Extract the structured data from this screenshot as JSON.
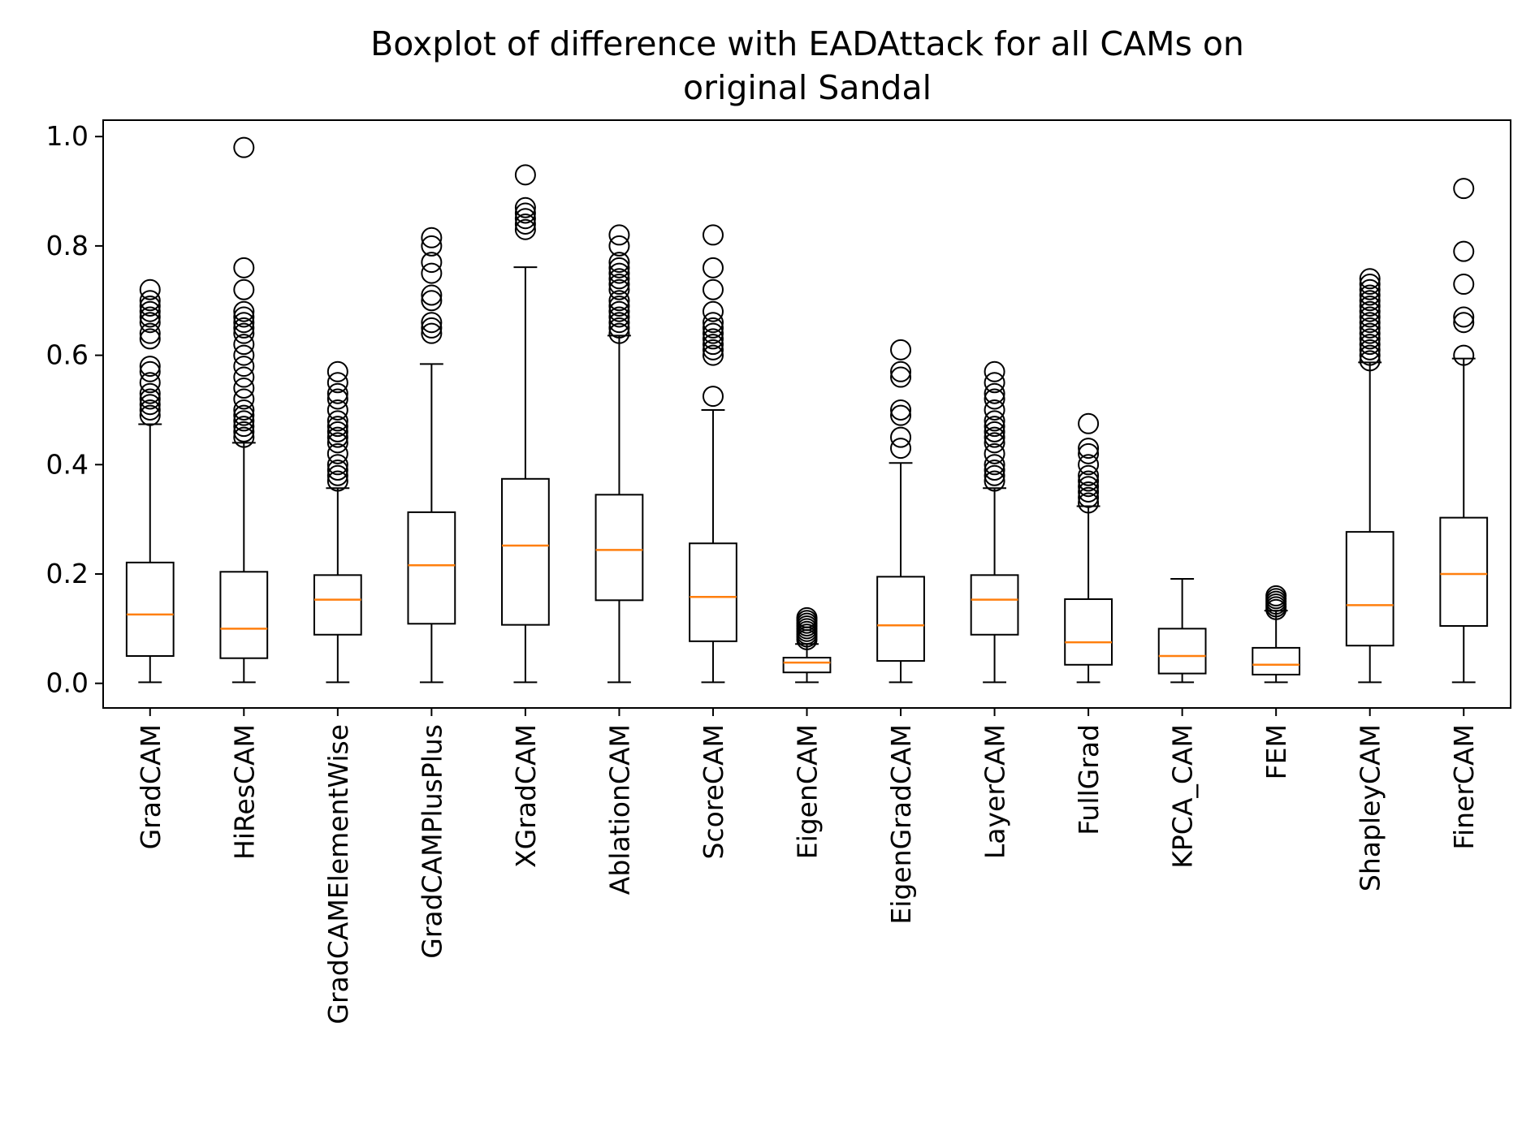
{
  "chart_data": {
    "type": "boxplot",
    "title_lines": [
      "Boxplot of difference with EADAttack for all CAMs on",
      "original Sandal"
    ],
    "xlabel": "",
    "ylabel": "",
    "ylim": [
      -0.045,
      1.03
    ],
    "yticks": [
      0.0,
      0.2,
      0.4,
      0.6,
      0.8,
      1.0
    ],
    "ytick_labels": [
      "0.0",
      "0.2",
      "0.4",
      "0.6",
      "0.8",
      "1.0"
    ],
    "grid": false,
    "colors": {
      "box": "#000000",
      "median": "#ff7f0e"
    },
    "categories": [
      "GradCAM",
      "HiResCAM",
      "GradCAMElementWise",
      "GradCAMPlusPlus",
      "XGradCAM",
      "AblationCAM",
      "ScoreCAM",
      "EigenCAM",
      "EigenGradCAM",
      "LayerCAM",
      "FullGrad",
      "KPCA_CAM",
      "FEM",
      "ShapleyCAM",
      "FinerCAM"
    ],
    "boxes": [
      {
        "whislo": 0.002,
        "q1": 0.05,
        "med": 0.126,
        "q3": 0.221,
        "whishi": 0.474,
        "fliers": [
          0.49,
          0.5,
          0.51,
          0.52,
          0.53,
          0.55,
          0.57,
          0.58,
          0.63,
          0.64,
          0.66,
          0.67,
          0.68,
          0.69,
          0.7,
          0.72
        ]
      },
      {
        "whislo": 0.002,
        "q1": 0.046,
        "med": 0.1,
        "q3": 0.204,
        "whishi": 0.44,
        "fliers": [
          0.45,
          0.46,
          0.47,
          0.48,
          0.49,
          0.5,
          0.52,
          0.54,
          0.56,
          0.58,
          0.6,
          0.62,
          0.64,
          0.65,
          0.66,
          0.67,
          0.68,
          0.72,
          0.76,
          0.98
        ]
      },
      {
        "whislo": 0.002,
        "q1": 0.089,
        "med": 0.153,
        "q3": 0.198,
        "whishi": 0.357,
        "fliers": [
          0.37,
          0.38,
          0.39,
          0.4,
          0.42,
          0.44,
          0.45,
          0.46,
          0.47,
          0.48,
          0.5,
          0.52,
          0.53,
          0.55,
          0.57
        ]
      },
      {
        "whislo": 0.002,
        "q1": 0.109,
        "med": 0.216,
        "q3": 0.313,
        "whishi": 0.584,
        "fliers": [
          0.64,
          0.65,
          0.66,
          0.7,
          0.71,
          0.75,
          0.77,
          0.8,
          0.815
        ]
      },
      {
        "whislo": 0.002,
        "q1": 0.107,
        "med": 0.252,
        "q3": 0.374,
        "whishi": 0.761,
        "fliers": [
          0.83,
          0.84,
          0.85,
          0.86,
          0.87,
          0.93
        ]
      },
      {
        "whislo": 0.002,
        "q1": 0.152,
        "med": 0.244,
        "q3": 0.345,
        "whishi": 0.636,
        "fliers": [
          0.64,
          0.65,
          0.66,
          0.67,
          0.68,
          0.69,
          0.7,
          0.72,
          0.73,
          0.74,
          0.75,
          0.76,
          0.77,
          0.8,
          0.82
        ]
      },
      {
        "whislo": 0.002,
        "q1": 0.077,
        "med": 0.158,
        "q3": 0.256,
        "whishi": 0.5,
        "fliers": [
          0.525,
          0.6,
          0.61,
          0.62,
          0.63,
          0.64,
          0.65,
          0.66,
          0.68,
          0.72,
          0.76,
          0.82
        ]
      },
      {
        "whislo": 0.002,
        "q1": 0.02,
        "med": 0.038,
        "q3": 0.047,
        "whishi": 0.072,
        "fliers": [
          0.08,
          0.085,
          0.09,
          0.095,
          0.1,
          0.105,
          0.11,
          0.115,
          0.12
        ]
      },
      {
        "whislo": 0.002,
        "q1": 0.041,
        "med": 0.106,
        "q3": 0.195,
        "whishi": 0.403,
        "fliers": [
          0.43,
          0.45,
          0.49,
          0.5,
          0.56,
          0.57,
          0.61
        ]
      },
      {
        "whislo": 0.002,
        "q1": 0.089,
        "med": 0.153,
        "q3": 0.198,
        "whishi": 0.357,
        "fliers": [
          0.37,
          0.38,
          0.39,
          0.4,
          0.42,
          0.44,
          0.45,
          0.46,
          0.47,
          0.48,
          0.5,
          0.52,
          0.53,
          0.55,
          0.57
        ]
      },
      {
        "whislo": 0.002,
        "q1": 0.034,
        "med": 0.075,
        "q3": 0.154,
        "whishi": 0.324,
        "fliers": [
          0.33,
          0.34,
          0.35,
          0.36,
          0.37,
          0.38,
          0.4,
          0.42,
          0.43,
          0.475
        ]
      },
      {
        "whislo": 0.002,
        "q1": 0.018,
        "med": 0.05,
        "q3": 0.1,
        "whishi": 0.191,
        "fliers": []
      },
      {
        "whislo": 0.002,
        "q1": 0.016,
        "med": 0.034,
        "q3": 0.065,
        "whishi": 0.133,
        "fliers": [
          0.135,
          0.14,
          0.145,
          0.15,
          0.155,
          0.16
        ]
      },
      {
        "whislo": 0.002,
        "q1": 0.069,
        "med": 0.143,
        "q3": 0.277,
        "whishi": 0.587,
        "fliers": [
          0.59,
          0.6,
          0.61,
          0.62,
          0.63,
          0.64,
          0.65,
          0.66,
          0.67,
          0.68,
          0.69,
          0.7,
          0.71,
          0.72,
          0.73,
          0.74
        ]
      },
      {
        "whislo": 0.002,
        "q1": 0.105,
        "med": 0.2,
        "q3": 0.303,
        "whishi": 0.594,
        "fliers": [
          0.6,
          0.66,
          0.67,
          0.73,
          0.79,
          0.905
        ]
      }
    ]
  }
}
